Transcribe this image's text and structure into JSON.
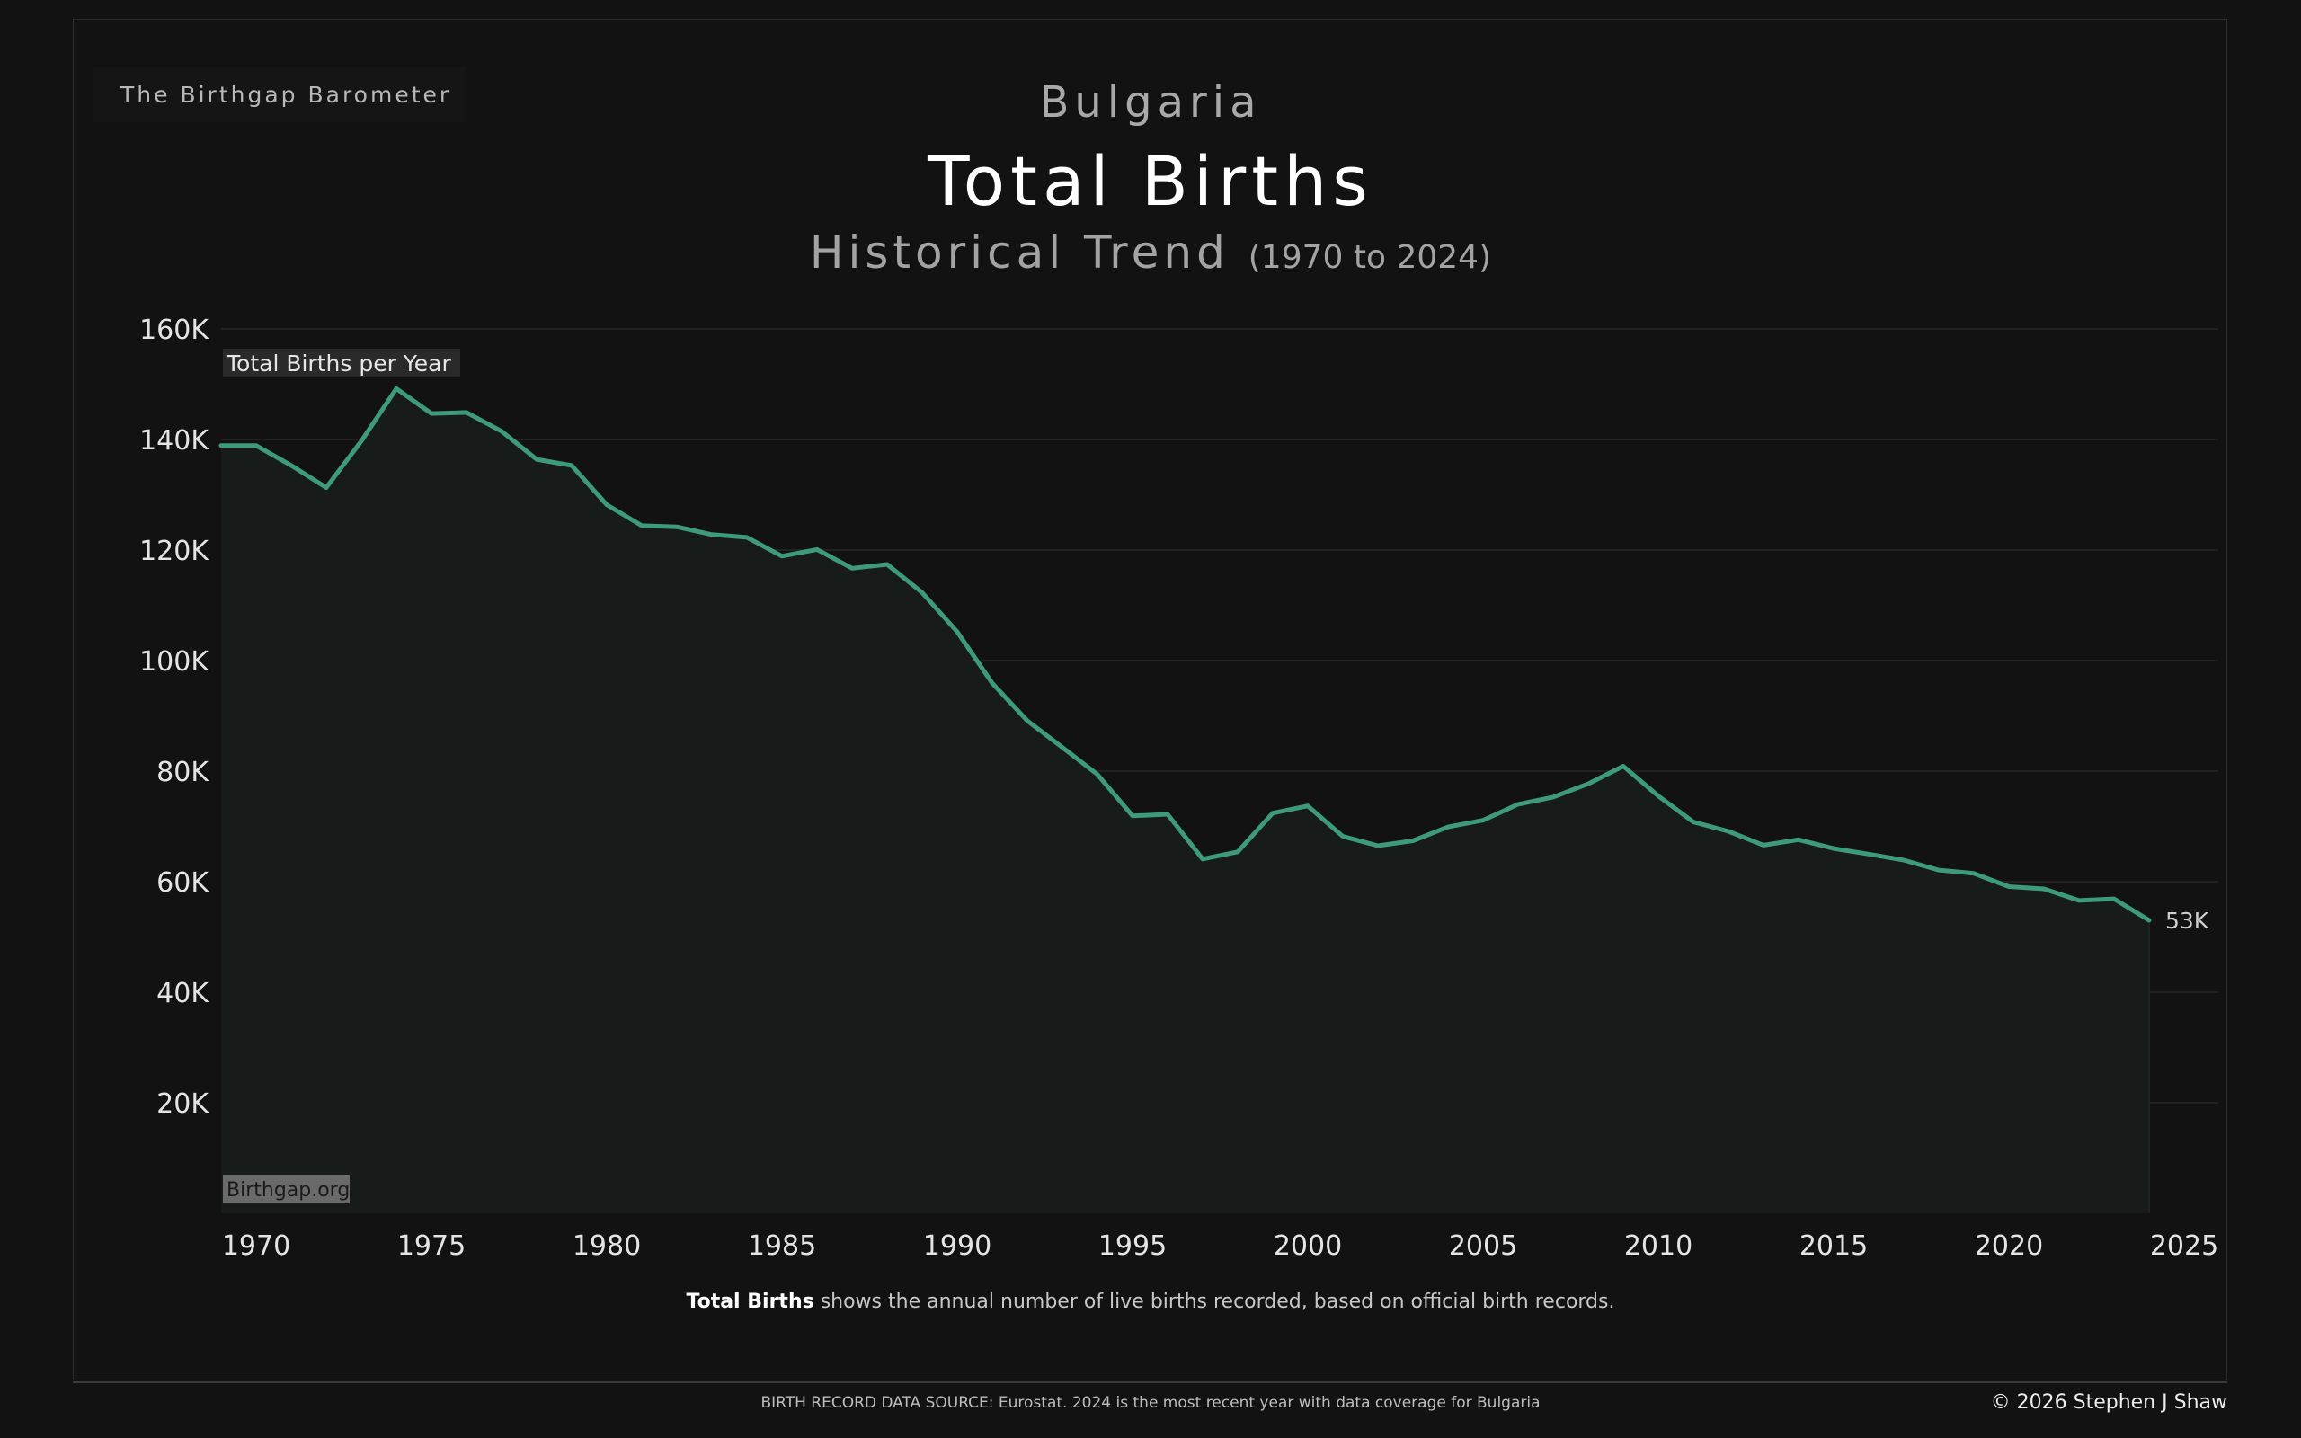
{
  "header": {
    "brand": "The Birthgap Barometer",
    "country": "Bulgaria",
    "title": "Total Births",
    "subtitle": "Historical Trend",
    "range": "(1970 to 2024)"
  },
  "chart_data": {
    "type": "area",
    "series": [
      {
        "name": "Total Births per Year",
        "x": [
          1970,
          1971,
          1972,
          1973,
          1974,
          1975,
          1976,
          1977,
          1978,
          1979,
          1980,
          1981,
          1982,
          1983,
          1984,
          1985,
          1986,
          1987,
          1988,
          1989,
          1990,
          1991,
          1992,
          1993,
          1994,
          1995,
          1996,
          1997,
          1998,
          1999,
          2000,
          2001,
          2002,
          2003,
          2004,
          2005,
          2006,
          2007,
          2008,
          2009,
          2010,
          2011,
          2012,
          2013,
          2014,
          2015,
          2016,
          2017,
          2018,
          2019,
          2020,
          2021,
          2022,
          2023,
          2024
        ],
        "values": [
          138900,
          135300,
          131300,
          139700,
          149200,
          144700,
          144900,
          141500,
          136400,
          135300,
          128200,
          124400,
          124200,
          122800,
          122300,
          118900,
          120100,
          116700,
          117400,
          112300,
          105200,
          95900,
          89100,
          84300,
          79400,
          71900,
          72200,
          64100,
          65400,
          72400,
          73700,
          68200,
          66500,
          67400,
          69900,
          71100,
          74000,
          75300,
          77700,
          80900,
          75500,
          70800,
          69100,
          66600,
          67600,
          66000,
          65000,
          63900,
          62100,
          61500,
          59100,
          58700,
          56600,
          56900,
          53000
        ]
      }
    ],
    "ylim": [
      0,
      160000
    ],
    "xlim": [
      1969,
      2025
    ],
    "y_ticks": [
      20000,
      40000,
      60000,
      80000,
      100000,
      120000,
      140000,
      160000
    ],
    "y_tick_labels": [
      "20K",
      "40K",
      "60K",
      "80K",
      "100K",
      "120K",
      "140K",
      "160K"
    ],
    "x_ticks": [
      1970,
      1975,
      1980,
      1985,
      1990,
      1995,
      2000,
      2005,
      2010,
      2015,
      2020,
      2025
    ],
    "x_tick_labels": [
      "1970",
      "1975",
      "1980",
      "1985",
      "1990",
      "1995",
      "2000",
      "2005",
      "2010",
      "2015",
      "2020",
      "2025"
    ],
    "series_label": "Total Births per Year",
    "end_label": "53K",
    "watermark": "Birthgap.org",
    "grid": true,
    "line_color": "#3d9a7b",
    "area_color": "#171b1a"
  },
  "footer": {
    "caption_bold": "Total Births",
    "caption_rest": " shows the annual number of live births recorded, based on official birth records.",
    "source": "BIRTH RECORD DATA SOURCE: Eurostat. 2024 is the most recent year with data coverage for Bulgaria",
    "copyright": "© 2026 Stephen J Shaw"
  }
}
